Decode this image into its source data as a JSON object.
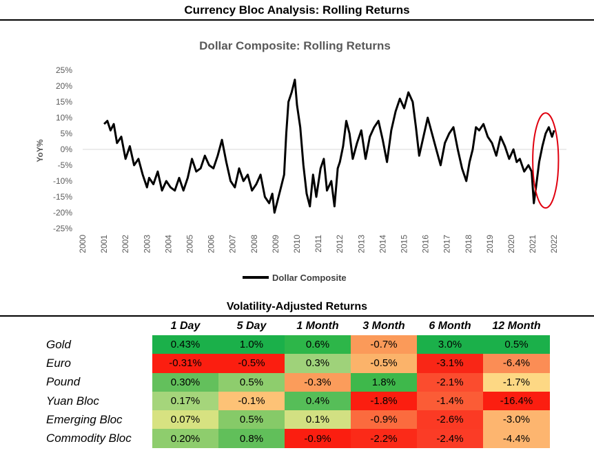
{
  "page_title": "Currency Bloc Analysis: Rolling Returns",
  "chart_data": {
    "type": "line",
    "title": "Dollar Composite: Rolling Returns",
    "ylabel": "YoY%",
    "xlabel": "",
    "ylim": [
      -25,
      25
    ],
    "xlim": [
      2000,
      2022.3
    ],
    "y_ticks": [
      25,
      20,
      15,
      10,
      5,
      0,
      -5,
      -10,
      -15,
      -20,
      -25
    ],
    "y_tick_labels": [
      "25%",
      "20%",
      "15%",
      "10%",
      "5%",
      "0%",
      "-5%",
      "-10%",
      "-15%",
      "-20%",
      "-25%"
    ],
    "x_ticks": [
      2000,
      2001,
      2002,
      2003,
      2004,
      2005,
      2006,
      2007,
      2008,
      2009,
      2010,
      2011,
      2012,
      2013,
      2014,
      2015,
      2016,
      2017,
      2018,
      2019,
      2020,
      2021,
      2022
    ],
    "x_tick_labels": [
      "2000",
      "2001",
      "2002",
      "2003",
      "2004",
      "2005",
      "2006",
      "2007",
      "2008",
      "2009",
      "2010",
      "2011",
      "2012",
      "2013",
      "2014",
      "2015",
      "2016",
      "2017",
      "2018",
      "2019",
      "2020",
      "2021",
      "2022"
    ],
    "series": [
      {
        "name": "Dollar Composite",
        "color": "#000000",
        "x": [
          2001.0,
          2001.15,
          2001.3,
          2001.45,
          2001.6,
          2001.8,
          2002.0,
          2002.2,
          2002.4,
          2002.6,
          2002.8,
          2003.0,
          2003.1,
          2003.3,
          2003.5,
          2003.7,
          2003.9,
          2004.1,
          2004.3,
          2004.5,
          2004.7,
          2004.9,
          2005.1,
          2005.3,
          2005.5,
          2005.7,
          2005.9,
          2006.1,
          2006.3,
          2006.5,
          2006.7,
          2006.9,
          2007.1,
          2007.3,
          2007.5,
          2007.7,
          2007.9,
          2008.1,
          2008.3,
          2008.5,
          2008.7,
          2008.85,
          2008.95,
          2009.1,
          2009.25,
          2009.4,
          2009.5,
          2009.6,
          2009.75,
          2009.9,
          2010.0,
          2010.15,
          2010.3,
          2010.45,
          2010.6,
          2010.75,
          2010.9,
          2011.1,
          2011.25,
          2011.4,
          2011.6,
          2011.75,
          2011.9,
          2012.0,
          2012.15,
          2012.3,
          2012.45,
          2012.6,
          2012.8,
          2013.0,
          2013.2,
          2013.4,
          2013.6,
          2013.8,
          2014.0,
          2014.2,
          2014.4,
          2014.6,
          2014.8,
          2015.0,
          2015.2,
          2015.4,
          2015.55,
          2015.7,
          2015.9,
          2016.1,
          2016.3,
          2016.5,
          2016.7,
          2016.9,
          2017.1,
          2017.3,
          2017.5,
          2017.7,
          2017.9,
          2018.05,
          2018.2,
          2018.35,
          2018.5,
          2018.7,
          2018.9,
          2019.1,
          2019.3,
          2019.5,
          2019.7,
          2019.9,
          2020.1,
          2020.25,
          2020.4,
          2020.6,
          2020.8,
          2020.95,
          2021.05,
          2021.15,
          2021.3,
          2021.45,
          2021.6,
          2021.75,
          2021.9,
          2022.0
        ],
        "values": [
          8,
          9,
          6,
          8,
          2,
          4,
          -3,
          1,
          -5,
          -3,
          -8,
          -12,
          -9,
          -11,
          -7,
          -13,
          -10,
          -12,
          -13,
          -9,
          -13,
          -9,
          -3,
          -7,
          -6,
          -2,
          -5,
          -6,
          -2,
          3,
          -4,
          -10,
          -12,
          -6,
          -10,
          -8,
          -13,
          -11,
          -8,
          -15,
          -17,
          -14,
          -20,
          -16,
          -12,
          -8,
          5,
          15,
          18,
          22,
          14,
          7,
          -5,
          -14,
          -18,
          -8,
          -15,
          -6,
          -3,
          -13,
          -10,
          -18,
          -6,
          -4,
          1,
          9,
          5,
          -3,
          2,
          6,
          -3,
          4,
          7,
          9,
          3,
          -4,
          6,
          12,
          16,
          13,
          18,
          15,
          7,
          -2,
          4,
          10,
          5,
          0,
          -5,
          2,
          5,
          7,
          0,
          -6,
          -10,
          -4,
          0,
          7,
          6,
          8,
          4,
          2,
          -2,
          4,
          1,
          -3,
          0,
          -4,
          -3,
          -7,
          -5,
          -7,
          -17,
          -12,
          -4,
          1,
          5,
          7,
          4,
          6
        ],
        "legend": "bottom"
      }
    ],
    "annotations": [
      {
        "type": "ellipse",
        "color": "#e0000f",
        "x_center": 2021.6,
        "y_center": -3.5,
        "x_radius": 0.6,
        "y_radius": 15
      }
    ]
  },
  "table": {
    "title": "Volatility-Adjusted Returns",
    "columns": [
      "1 Day",
      "5 Day",
      "1 Month",
      "3 Month",
      "6 Month",
      "12 Month"
    ],
    "rows": [
      {
        "label": "Gold",
        "cells": [
          {
            "text": "0.43%",
            "color": "#1bb04a"
          },
          {
            "text": "1.0%",
            "color": "#1bb04a"
          },
          {
            "text": "0.6%",
            "color": "#2db649"
          },
          {
            "text": "-0.7%",
            "color": "#fb9a59"
          },
          {
            "text": "3.0%",
            "color": "#1bb04a"
          },
          {
            "text": "0.5%",
            "color": "#1bb04a"
          }
        ]
      },
      {
        "label": "Euro",
        "cells": [
          {
            "text": "-0.31%",
            "color": "#fb1e10"
          },
          {
            "text": "-0.5%",
            "color": "#fb1e10"
          },
          {
            "text": "0.3%",
            "color": "#9fd27a"
          },
          {
            "text": "-0.5%",
            "color": "#fbb36a"
          },
          {
            "text": "-3.1%",
            "color": "#f92616"
          },
          {
            "text": "-6.4%",
            "color": "#fb8d55"
          }
        ]
      },
      {
        "label": "Pound",
        "cells": [
          {
            "text": "0.30%",
            "color": "#63c05c"
          },
          {
            "text": "0.5%",
            "color": "#8ecd6d"
          },
          {
            "text": "-0.3%",
            "color": "#fb9c5b"
          },
          {
            "text": "1.8%",
            "color": "#3eb84b"
          },
          {
            "text": "-2.1%",
            "color": "#fb4c2e"
          },
          {
            "text": "-1.7%",
            "color": "#fdd884"
          }
        ]
      },
      {
        "label": "Yuan Bloc",
        "cells": [
          {
            "text": "0.17%",
            "color": "#a5d57b"
          },
          {
            "text": "-0.1%",
            "color": "#fdc276"
          },
          {
            "text": "0.4%",
            "color": "#56be58"
          },
          {
            "text": "-1.8%",
            "color": "#fb1e10"
          },
          {
            "text": "-1.4%",
            "color": "#fb5c36"
          },
          {
            "text": "-16.4%",
            "color": "#fb1e10"
          }
        ]
      },
      {
        "label": "Emerging Bloc",
        "cells": [
          {
            "text": "0.07%",
            "color": "#d7e281"
          },
          {
            "text": "0.5%",
            "color": "#86ca68"
          },
          {
            "text": "0.1%",
            "color": "#d2e082"
          },
          {
            "text": "-0.9%",
            "color": "#fb6b3e"
          },
          {
            "text": "-2.6%",
            "color": "#fb3a24"
          },
          {
            "text": "-3.0%",
            "color": "#fdb56f"
          }
        ]
      },
      {
        "label": "Commodity Bloc",
        "cells": [
          {
            "text": "0.20%",
            "color": "#8ecd6d"
          },
          {
            "text": "0.8%",
            "color": "#61bf5a"
          },
          {
            "text": "-0.9%",
            "color": "#fb1e10"
          },
          {
            "text": "-2.2%",
            "color": "#fb2a18"
          },
          {
            "text": "-2.4%",
            "color": "#fb3c26"
          },
          {
            "text": "-4.4%",
            "color": "#fdb56f"
          }
        ]
      }
    ]
  }
}
